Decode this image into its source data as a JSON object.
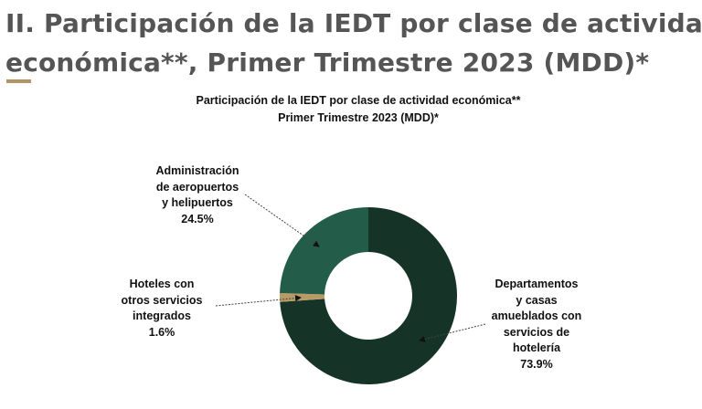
{
  "header": {
    "title_line1": "II. Participación de la IEDT por clase de actividad",
    "title_line2": "económica**, Primer Trimestre 2023 (MDD)*",
    "accent_color": "#b39468"
  },
  "chart_data": {
    "type": "pie",
    "variant": "donut",
    "title": "Participación de la IEDT por clase de actividad económica**",
    "subtitle": "Primer Trimestre 2023 (MDD)*",
    "unit": "%",
    "slices": [
      {
        "label_lines": [
          "Departamentos",
          "y casas",
          "amueblados con",
          "servicios de",
          "hotelería"
        ],
        "value": 73.9,
        "value_label": "73.9%",
        "color": "#163328"
      },
      {
        "label_lines": [
          "Hoteles con",
          "otros servicios",
          "integrados"
        ],
        "value": 1.6,
        "value_label": "1.6%",
        "color": "#b89a64"
      },
      {
        "label_lines": [
          "Administración",
          "de aeropuertos",
          "y helipuertos"
        ],
        "value": 24.5,
        "value_label": "24.5%",
        "color": "#245c4a"
      }
    ],
    "start_angle": "top",
    "direction": "clockwise",
    "legend": "none"
  }
}
